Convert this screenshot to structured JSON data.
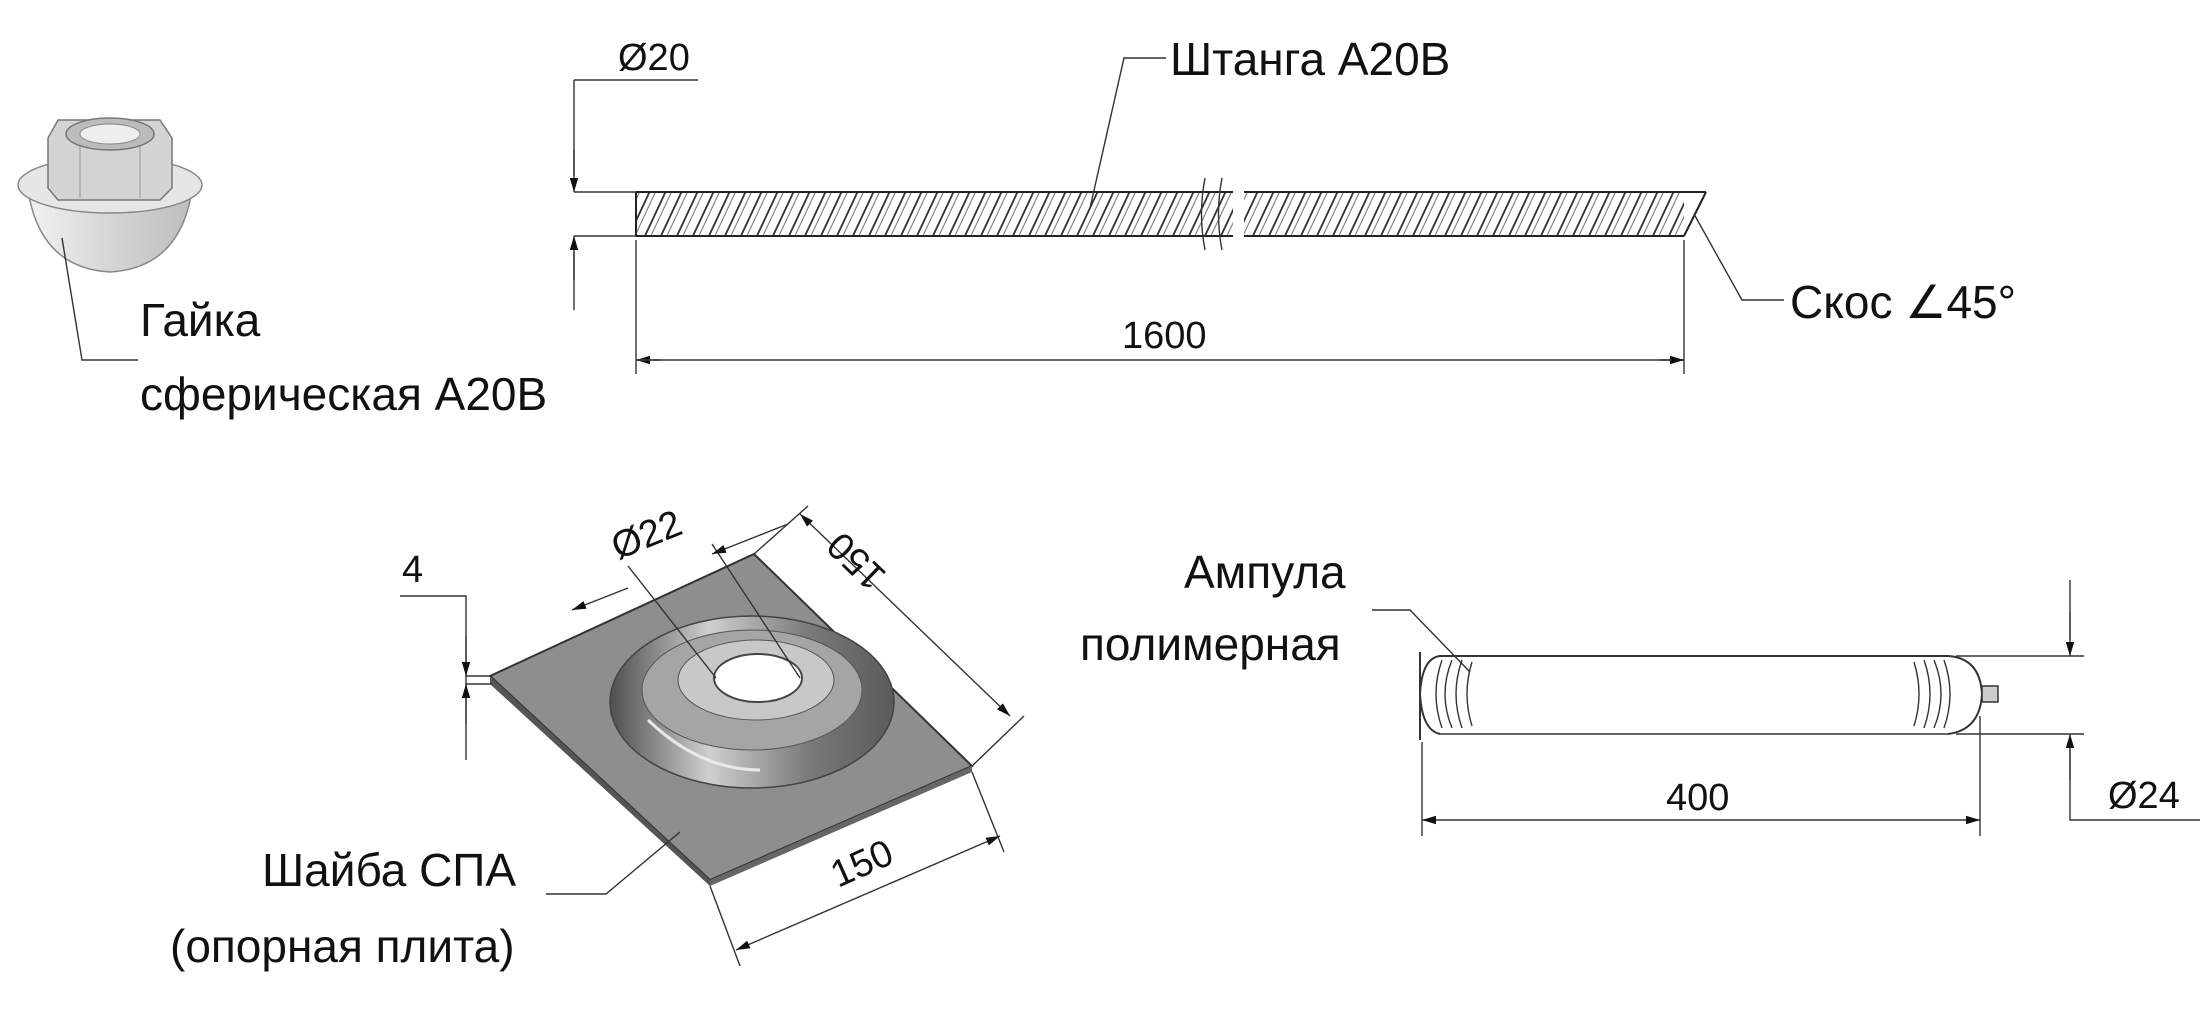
{
  "labels": {
    "rod": "Штанга А20В",
    "bevel": "Скос ∠45°",
    "nut_line1": "Гайка",
    "nut_line2": "сферическая А20В",
    "washer_line1": "Шайба СПА",
    "washer_line2": "(опорная плита)",
    "ampoule_line1": "Ампула",
    "ampoule_line2": "полимерная"
  },
  "dimensions": {
    "rod_diameter": "Ø20",
    "rod_length": "1600",
    "plate_thickness": "4",
    "hole_diameter": "Ø22",
    "plate_side_a": "150",
    "plate_side_b": "150",
    "ampoule_length": "400",
    "ampoule_diameter": "Ø24"
  },
  "colors": {
    "line": "#222222",
    "plate": "#8c8c8c",
    "nut": "#d9d9d9"
  }
}
